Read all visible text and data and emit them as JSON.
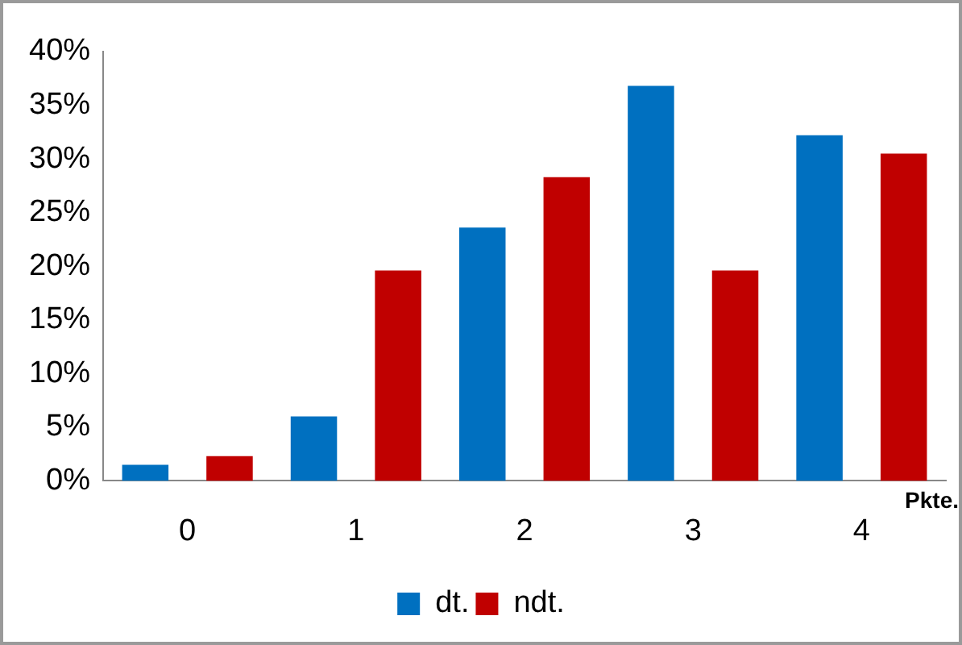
{
  "chart_data": {
    "type": "bar",
    "xlabel": "Pkte.",
    "categories": [
      "0",
      "1",
      "2",
      "3",
      "4"
    ],
    "series": [
      {
        "name": "dt.",
        "color": "#0070c0",
        "values": [
          1.5,
          6.0,
          23.6,
          36.8,
          32.2
        ]
      },
      {
        "name": "ndt.",
        "color": "#c00000",
        "values": [
          2.3,
          19.6,
          28.3,
          19.6,
          30.5
        ]
      }
    ],
    "ylim": [
      0,
      40
    ],
    "yticks": [
      {
        "value": 0,
        "label": "0%"
      },
      {
        "value": 5,
        "label": "5%"
      },
      {
        "value": 10,
        "label": "10%"
      },
      {
        "value": 15,
        "label": "15%"
      },
      {
        "value": 20,
        "label": "20%"
      },
      {
        "value": 25,
        "label": "25%"
      },
      {
        "value": 30,
        "label": "30%"
      },
      {
        "value": 35,
        "label": "35%"
      },
      {
        "value": 40,
        "label": "40%"
      }
    ],
    "grid": false,
    "legend": "bottom"
  }
}
